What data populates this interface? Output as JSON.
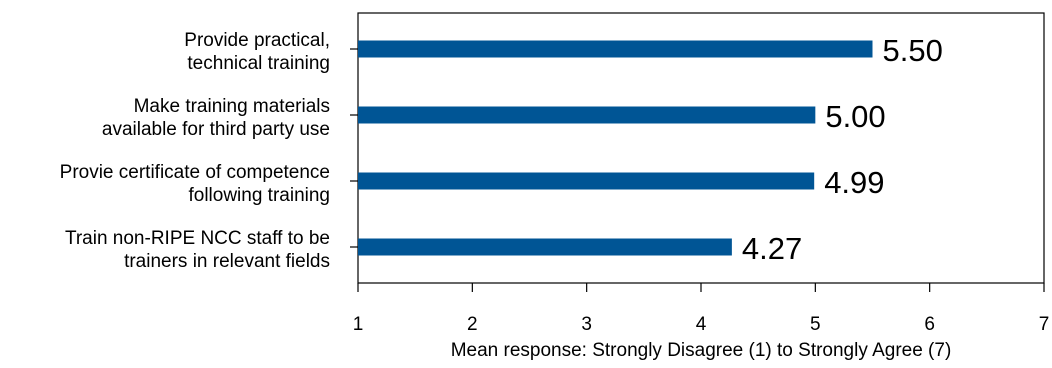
{
  "chart_data": {
    "type": "bar",
    "orientation": "horizontal",
    "title": "",
    "xlabel": "Mean response: Strongly Disagree (1) to Strongly Agree (7)",
    "ylabel": "",
    "xlim": [
      1,
      7
    ],
    "xticks": [
      "1",
      "2",
      "3",
      "4",
      "5",
      "6",
      "7"
    ],
    "grid": false,
    "categories": [
      [
        "Provide practical,",
        "technical training"
      ],
      [
        "Make training materials",
        "available for third party use"
      ],
      [
        "Provie certificate of competence",
        "following training"
      ],
      [
        "Train non-RIPE NCC staff to be",
        "trainers in relevant fields"
      ]
    ],
    "values": [
      5.5,
      5.0,
      4.99,
      4.27
    ],
    "data_labels": [
      "5.50",
      "5.00",
      "4.99",
      "4.27"
    ],
    "bar_color": "#005595"
  }
}
